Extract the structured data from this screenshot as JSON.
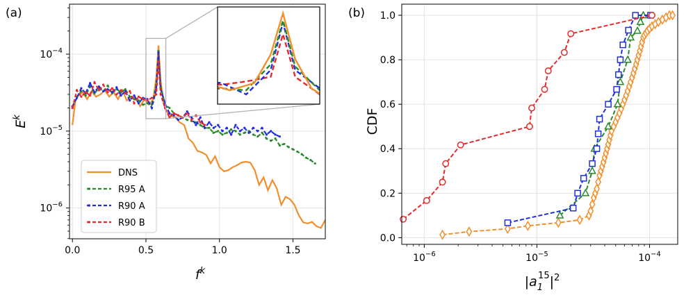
{
  "colors": {
    "DNS": "#f28e2b",
    "R95 A": "#2a8a2a",
    "R90 A": "#1f2fe0",
    "R90 B": "#e8282a"
  },
  "chart_data": [
    {
      "type": "line",
      "panel_label": "(a)",
      "xlabel_base": "f",
      "xlabel_sup": "k",
      "ylabel_base": "E",
      "ylabel_sup": "k",
      "xlim": [
        -0.02,
        1.72
      ],
      "ylog": true,
      "ylim_exp": [
        -6.4,
        -3.35
      ],
      "xticks": [
        {
          "v": 0.0,
          "label": "0.0"
        },
        {
          "v": 0.5,
          "label": "0.5"
        },
        {
          "v": 1.0,
          "label": "1.0"
        },
        {
          "v": 1.5,
          "label": "1.5"
        }
      ],
      "yticks": [
        {
          "v": -6,
          "base": "10",
          "sup": "−6"
        },
        {
          "v": -5,
          "base": "10",
          "sup": "−5"
        },
        {
          "v": -4,
          "base": "10",
          "sup": "−4"
        }
      ],
      "inset_label": "zoom of peak region 0.5–0.63",
      "series": [
        {
          "name": "DNS",
          "dash": "solid",
          "x": [
            0.0,
            0.02,
            0.04,
            0.07,
            0.1,
            0.13,
            0.16,
            0.19,
            0.22,
            0.25,
            0.28,
            0.31,
            0.34,
            0.37,
            0.4,
            0.43,
            0.46,
            0.49,
            0.52,
            0.55,
            0.57,
            0.585,
            0.6,
            0.62,
            0.64,
            0.67,
            0.7,
            0.73,
            0.76,
            0.79,
            0.82,
            0.85,
            0.88,
            0.91,
            0.94,
            0.97,
            1.0,
            1.03,
            1.06,
            1.09,
            1.12,
            1.15,
            1.18,
            1.21,
            1.24,
            1.27,
            1.3,
            1.33,
            1.36,
            1.39,
            1.42,
            1.45,
            1.48,
            1.51,
            1.54,
            1.57,
            1.6,
            1.63,
            1.66,
            1.69,
            1.72
          ],
          "y": [
            1.2e-05,
            2.5e-05,
            2.9e-05,
            3.2e-05,
            2.6e-05,
            3.3e-05,
            2.8e-05,
            3e-05,
            3.4e-05,
            2.8e-05,
            3.2e-05,
            2.6e-05,
            3.4e-05,
            2.5e-05,
            2.8e-05,
            2.7e-05,
            2.1e-05,
            2.6e-05,
            2.2e-05,
            2.6e-05,
            5e-05,
            0.00013,
            4.5e-05,
            2.3e-05,
            1.8e-05,
            1.6e-05,
            1.5e-05,
            1.3e-05,
            1.2e-05,
            8e-06,
            7e-06,
            5.5e-06,
            5.3e-06,
            4.9e-06,
            3.8e-06,
            4.7e-06,
            3.4e-06,
            3e-06,
            3.1e-06,
            3.4e-06,
            3.6e-06,
            3.9e-06,
            4e-06,
            3.9e-06,
            3.1e-06,
            2e-06,
            2.5e-06,
            1.7e-06,
            2.3e-06,
            1.8e-06,
            1.1e-06,
            1.4e-06,
            1.3e-06,
            1.1e-06,
            8e-07,
            6.5e-07,
            6.3e-07,
            6.6e-07,
            5.8e-07,
            5.5e-07,
            7e-07
          ]
        },
        {
          "name": "R95 A",
          "dash": "5,3",
          "x": [
            0.0,
            0.03,
            0.06,
            0.09,
            0.12,
            0.15,
            0.18,
            0.21,
            0.24,
            0.27,
            0.3,
            0.33,
            0.36,
            0.39,
            0.42,
            0.45,
            0.48,
            0.51,
            0.54,
            0.57,
            0.585,
            0.6,
            0.63,
            0.66,
            0.69,
            0.72,
            0.75,
            0.78,
            0.81,
            0.84,
            0.87,
            0.9,
            0.93,
            0.96,
            0.99,
            1.02,
            1.05,
            1.08,
            1.11,
            1.14,
            1.17,
            1.2,
            1.23,
            1.26,
            1.29,
            1.32,
            1.35,
            1.38,
            1.41,
            1.44,
            1.47,
            1.5,
            1.53,
            1.56,
            1.59,
            1.62,
            1.65
          ],
          "y": [
            2e-05,
            2.8e-05,
            3.3e-05,
            2.9e-05,
            3.8e-05,
            3.1e-05,
            3.6e-05,
            3.3e-05,
            3.9e-05,
            3.1e-05,
            3.5e-05,
            3.2e-05,
            3.5e-05,
            2.8e-05,
            2.6e-05,
            2.5e-05,
            2.2e-05,
            2.3e-05,
            2.2e-05,
            4e-05,
            0.00011,
            3.8e-05,
            2.2e-05,
            2e-05,
            1.7e-05,
            1.6e-05,
            1.5e-05,
            1.4e-05,
            1.35e-05,
            1.3e-05,
            1.2e-05,
            1.1e-05,
            1.1e-05,
            9.5e-06,
            1e-05,
            9e-06,
            9.5e-06,
            1.05e-05,
            1e-05,
            9e-06,
            9.5e-06,
            1e-05,
            9e-06,
            8.5e-06,
            9.5e-06,
            8e-06,
            7.5e-06,
            8e-06,
            6.5e-06,
            6.8e-06,
            6.2e-06,
            5.8e-06,
            5.4e-06,
            5e-06,
            4.5e-06,
            4.2e-06,
            3.8e-06
          ]
        },
        {
          "name": "R90 A",
          "dash": "5,3",
          "x": [
            0.0,
            0.03,
            0.06,
            0.09,
            0.12,
            0.15,
            0.18,
            0.21,
            0.24,
            0.27,
            0.3,
            0.33,
            0.36,
            0.39,
            0.42,
            0.45,
            0.48,
            0.51,
            0.54,
            0.57,
            0.585,
            0.6,
            0.63,
            0.66,
            0.69,
            0.72,
            0.75,
            0.78,
            0.81,
            0.84,
            0.87,
            0.9,
            0.93,
            0.96,
            0.99,
            1.02,
            1.05,
            1.08,
            1.11,
            1.14,
            1.17,
            1.2,
            1.23,
            1.26,
            1.29,
            1.32,
            1.35,
            1.38,
            1.41
          ],
          "y": [
            2.1e-05,
            2.7e-05,
            3.6e-05,
            3.1e-05,
            4.2e-05,
            3.2e-05,
            3.8e-05,
            3.3e-05,
            3.5e-05,
            3.2e-05,
            3.7e-05,
            2.9e-05,
            3.3e-05,
            2.5e-05,
            2.9e-05,
            2.3e-05,
            2.7e-05,
            2.6e-05,
            2e-05,
            3.5e-05,
            0.000105,
            3.5e-05,
            2.3e-05,
            1.7e-05,
            1.6e-05,
            1.4e-05,
            1.5e-05,
            1.8e-05,
            1.5e-05,
            1.2e-05,
            1.5e-05,
            1.1e-05,
            1.3e-05,
            1.1e-05,
            1.2e-05,
            1e-05,
            1.1e-05,
            9e-06,
            1.2e-05,
            1e-05,
            1.1e-05,
            9.5e-06,
            1.1e-05,
            1e-05,
            1.1e-05,
            9e-06,
            1e-05,
            9e-06,
            8.5e-06
          ]
        },
        {
          "name": "R90 B",
          "dash": "5,3",
          "x": [
            0.0,
            0.03,
            0.06,
            0.09,
            0.12,
            0.15,
            0.18,
            0.21,
            0.24,
            0.27,
            0.3,
            0.33,
            0.36,
            0.39,
            0.42,
            0.45,
            0.48,
            0.51,
            0.54,
            0.57,
            0.585,
            0.6,
            0.63,
            0.66,
            0.69,
            0.72,
            0.75,
            0.78,
            0.81,
            0.84,
            0.87,
            0.9
          ],
          "y": [
            2e-05,
            3.4e-05,
            2.8e-05,
            3.2e-05,
            2.9e-05,
            4.3e-05,
            3.4e-05,
            4e-05,
            3.2e-05,
            3.6e-05,
            3e-05,
            3.4e-05,
            3.1e-05,
            3.3e-05,
            2.3e-05,
            2.8e-05,
            2.6e-05,
            2.5e-05,
            2.7e-05,
            3e-05,
            8e-05,
            3e-05,
            2e-05,
            1.5e-05,
            1.7e-05,
            1.6e-05,
            1.5e-05,
            1.7e-05,
            1.4e-05,
            1.6e-05,
            1.3e-05,
            1.2e-05
          ]
        }
      ]
    },
    {
      "type": "line",
      "panel_label": "(b)",
      "xlabel_base": "|a",
      "xlabel_sub": "1",
      "xlabel_sup": "15",
      "xlabel_tail": "|",
      "xlabel_tail_sup": "2",
      "ylabel": "CDF",
      "xlog": true,
      "xlim_exp": [
        -6.2,
        -3.75
      ],
      "ylim": [
        -0.03,
        1.05
      ],
      "xticks": [
        {
          "v": -6,
          "base": "10",
          "sup": "−6"
        },
        {
          "v": -5,
          "base": "10",
          "sup": "−5"
        },
        {
          "v": -4,
          "base": "10",
          "sup": "−4"
        }
      ],
      "yticks": [
        {
          "v": 0.0,
          "label": "0.0"
        },
        {
          "v": 0.2,
          "label": "0.2"
        },
        {
          "v": 0.4,
          "label": "0.4"
        },
        {
          "v": 0.6,
          "label": "0.6"
        },
        {
          "v": 0.8,
          "label": "0.8"
        },
        {
          "v": 1.0,
          "label": "1.0"
        }
      ],
      "series": [
        {
          "name": "R90 B",
          "marker": "circle",
          "x": [
            6.5e-07,
            1.05e-06,
            1.45e-06,
            1.55e-06,
            2.1e-06,
            8.6e-06,
            9e-06,
            1.17e-05,
            1.26e-05,
            1.75e-05,
            2e-05,
            0.000105
          ],
          "y": [
            0.083,
            0.167,
            0.25,
            0.333,
            0.417,
            0.5,
            0.583,
            0.667,
            0.75,
            0.833,
            0.917,
            1.0
          ]
        },
        {
          "name": "R90 A",
          "marker": "square",
          "x": [
            5.5e-06,
            2.1e-05,
            2.3e-05,
            2.6e-05,
            3.1e-05,
            3.4e-05,
            3.5e-05,
            3.6e-05,
            4.3e-05,
            5.1e-05,
            5.3e-05,
            5.5e-05,
            5.8e-05,
            6.5e-05,
            7.5e-05,
            0.000102
          ],
          "y": [
            0.067,
            0.133,
            0.2,
            0.267,
            0.333,
            0.4,
            0.467,
            0.533,
            0.6,
            0.667,
            0.733,
            0.8,
            0.867,
            0.933,
            1.0,
            1.0
          ]
        },
        {
          "name": "R95 A",
          "marker": "triangle",
          "x": [
            1.6e-05,
            2.7e-05,
            3.1e-05,
            3.25e-05,
            4.3e-05,
            5.2e-05,
            5.5e-05,
            6.4e-05,
            6.8e-05,
            7.8e-05,
            8.3e-05,
            8.8e-05
          ],
          "y": [
            0.1,
            0.2,
            0.3,
            0.4,
            0.5,
            0.6,
            0.7,
            0.8,
            0.9,
            0.93,
            0.97,
            1.0
          ]
        },
        {
          "name": "DNS",
          "marker": "diamond",
          "x": [
            1.45e-06,
            2.5e-06,
            5.5e-06,
            8.3e-06,
            1.55e-05,
            2.4e-05,
            2.9e-05,
            3e-05,
            3.1e-05,
            3.2e-05,
            3.3e-05,
            3.4e-05,
            3.5e-05,
            3.6e-05,
            3.7e-05,
            3.8e-05,
            3.9e-05,
            4e-05,
            4.1e-05,
            4.2e-05,
            4.3e-05,
            4.4e-05,
            4.5e-05,
            4.6e-05,
            4.8e-05,
            5e-05,
            5.2e-05,
            5.4e-05,
            5.6e-05,
            5.8e-05,
            6e-05,
            6.2e-05,
            6.4e-05,
            6.6e-05,
            6.8e-05,
            7e-05,
            7.2e-05,
            7.4e-05,
            7.6e-05,
            7.8e-05,
            8e-05,
            8.2e-05,
            8.4e-05,
            8.6e-05,
            8.8e-05,
            9e-05,
            9.3e-05,
            9.6e-05,
            0.0001,
            0.000105,
            0.000112,
            0.00012,
            0.00013,
            0.00014,
            0.00015,
            0.00016
          ],
          "y": [
            0.013,
            0.027,
            0.04,
            0.053,
            0.067,
            0.08,
            0.1,
            0.12,
            0.15,
            0.18,
            0.2,
            0.22,
            0.25,
            0.28,
            0.3,
            0.32,
            0.34,
            0.36,
            0.38,
            0.4,
            0.42,
            0.44,
            0.46,
            0.48,
            0.5,
            0.52,
            0.54,
            0.56,
            0.58,
            0.6,
            0.62,
            0.64,
            0.66,
            0.68,
            0.7,
            0.72,
            0.74,
            0.76,
            0.78,
            0.8,
            0.82,
            0.84,
            0.86,
            0.88,
            0.9,
            0.91,
            0.92,
            0.93,
            0.94,
            0.95,
            0.96,
            0.97,
            0.98,
            0.99,
            1.0,
            1.0
          ]
        }
      ]
    }
  ]
}
